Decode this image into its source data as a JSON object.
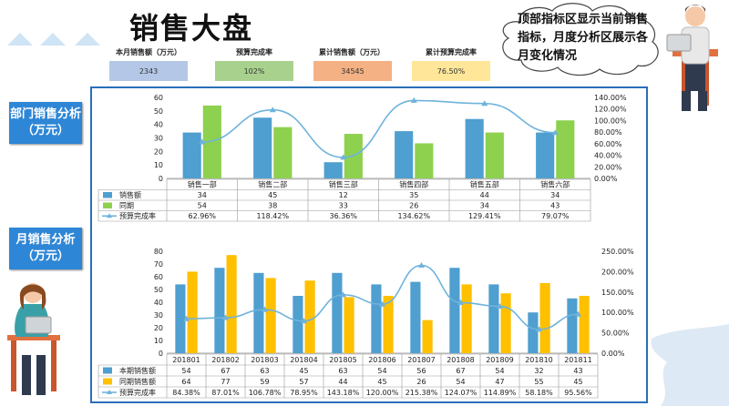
{
  "title": "销售大盘",
  "callout": "顶部指标区显示当前销售指标，月度分析区展示各月变化情况",
  "kpis": [
    {
      "label": "本月销售额（万元）",
      "value": "2343",
      "color": "#b4c7e7"
    },
    {
      "label": "预算完成率",
      "value": "102%",
      "color": "#a9d18e"
    },
    {
      "label": "累计销售额（万元）",
      "value": "34545",
      "color": "#f4b183"
    },
    {
      "label": "累计预算完成率",
      "value": "76.50%",
      "color": "#ffe699"
    }
  ],
  "side_labels": {
    "dept": "部门销售分析（万元）",
    "month": "月销售分析（万元）"
  },
  "chart_data": [
    {
      "type": "bar",
      "categories": [
        "销售一部",
        "销售二部",
        "销售三部",
        "销售四部",
        "销售五部",
        "销售六部"
      ],
      "series": [
        {
          "name": "销售额",
          "values": [
            34,
            45,
            12,
            35,
            44,
            34
          ],
          "color": "#4f9fd0"
        },
        {
          "name": "同期",
          "values": [
            54,
            38,
            33,
            26,
            34,
            43
          ],
          "color": "#8dd14f"
        },
        {
          "name": "预算完成率",
          "values": [
            62.96,
            118.42,
            36.36,
            134.62,
            129.41,
            79.07
          ],
          "color": "#6fb3dc",
          "axis": "right",
          "kind": "line"
        }
      ],
      "table_values": [
        [
          "34",
          "45",
          "12",
          "35",
          "44",
          "34"
        ],
        [
          "54",
          "38",
          "33",
          "26",
          "34",
          "43"
        ],
        [
          "62.96%",
          "118.42%",
          "36.36%",
          "134.62%",
          "129.41%",
          "79.07%"
        ]
      ],
      "ylim": [
        0,
        60
      ],
      "y_ticks": [
        "0",
        "10",
        "20",
        "30",
        "40",
        "50",
        "60"
      ],
      "y2lim": [
        0,
        140
      ],
      "y2_ticks": [
        "0.00%",
        "20.00%",
        "40.00%",
        "60.00%",
        "80.00%",
        "100.00%",
        "120.00%",
        "140.00%"
      ]
    },
    {
      "type": "bar",
      "categories": [
        "201801",
        "201802",
        "201803",
        "201804",
        "201805",
        "201806",
        "201807",
        "201808",
        "201809",
        "201810",
        "201811"
      ],
      "series": [
        {
          "name": "本期销售额",
          "values": [
            54,
            67,
            63,
            45,
            63,
            54,
            56,
            67,
            54,
            32,
            43
          ],
          "color": "#4f9fd0"
        },
        {
          "name": "同期销售额",
          "values": [
            64,
            77,
            59,
            57,
            44,
            45,
            26,
            54,
            47,
            55,
            45
          ],
          "color": "#ffc000"
        },
        {
          "name": "预算完成率",
          "values": [
            84.38,
            87.01,
            106.78,
            78.95,
            143.18,
            120.0,
            215.38,
            124.07,
            114.89,
            58.18,
            95.56
          ],
          "color": "#6fb3dc",
          "axis": "right",
          "kind": "line"
        }
      ],
      "table_values": [
        [
          "54",
          "67",
          "63",
          "45",
          "63",
          "54",
          "56",
          "67",
          "54",
          "32",
          "43"
        ],
        [
          "64",
          "77",
          "59",
          "57",
          "44",
          "45",
          "26",
          "54",
          "47",
          "55",
          "45"
        ],
        [
          "84.38%",
          "87.01%",
          "106.78%",
          "78.95%",
          "143.18%",
          "120.00%",
          "215.38%",
          "124.07%",
          "114.89%",
          "58.18%",
          "95.56%"
        ]
      ],
      "ylim": [
        0,
        80
      ],
      "y_ticks": [
        "0",
        "10",
        "20",
        "30",
        "40",
        "50",
        "60",
        "70",
        "80"
      ],
      "y2lim": [
        0,
        250
      ],
      "y2_ticks": [
        "0.00%",
        "50.00%",
        "100.00%",
        "150.00%",
        "200.00%",
        "250.00%"
      ]
    }
  ]
}
